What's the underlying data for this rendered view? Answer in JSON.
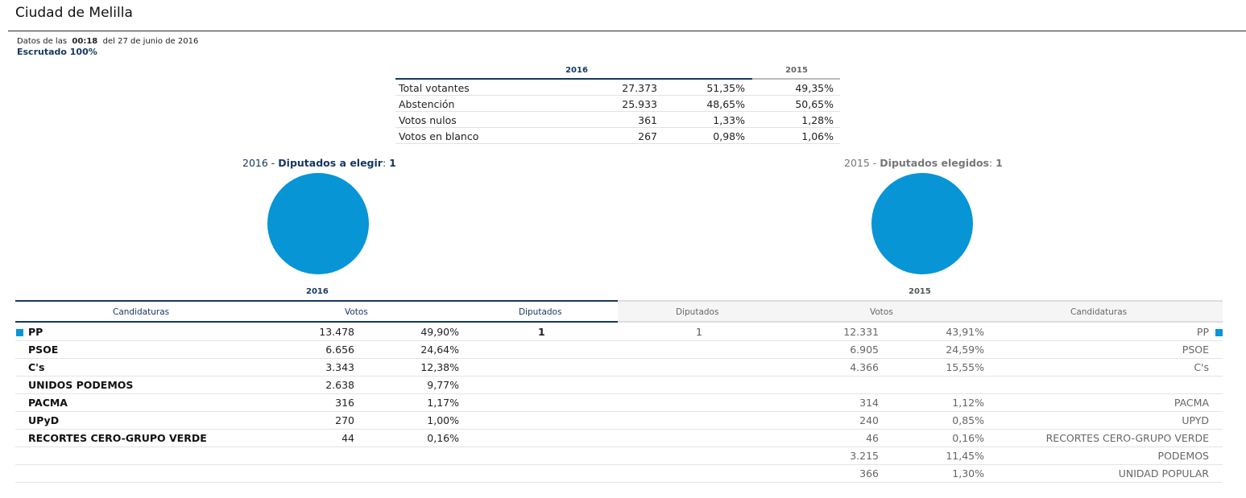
{
  "page": {
    "title": "Ciudad de Melilla",
    "datos_prefix": "Datos de las",
    "datos_time": "00:18",
    "datos_suffix": "del 27 de junio de 2016",
    "escrutado": "Escrutado 100%"
  },
  "summary": {
    "year_2016": "2016",
    "year_2015": "2015",
    "rows": [
      {
        "label": "Total votantes",
        "count_2016": "27.373",
        "pct_2016": "51,35%",
        "pct_2015": "49,35%"
      },
      {
        "label": "Abstención",
        "count_2016": "25.933",
        "pct_2016": "48,65%",
        "pct_2015": "50,65%"
      },
      {
        "label": "Votos nulos",
        "count_2016": "361",
        "pct_2016": "1,33%",
        "pct_2015": "1,28%"
      },
      {
        "label": "Votos en blanco",
        "count_2016": "267",
        "pct_2016": "0,98%",
        "pct_2015": "1,06%"
      }
    ]
  },
  "pies": {
    "left": {
      "year": "2016",
      "sep": " - ",
      "label": "Diputados a elegir",
      "colon": ": ",
      "value": "1",
      "color": "#0795d6"
    },
    "right": {
      "year": "2015",
      "sep": " - ",
      "label": "Diputados elegidos",
      "colon": ": ",
      "value": "1",
      "color": "#0795d6"
    }
  },
  "results": {
    "year_2016": "2016",
    "year_2015": "2015",
    "headers_2016": {
      "candidaturas": "Candidaturas",
      "votos": "Votos",
      "diputados": "Diputados"
    },
    "headers_2015": {
      "diputados": "Diputados",
      "votos": "Votos",
      "candidaturas": "Candidaturas"
    },
    "rows": [
      {
        "name_2016": "PP",
        "votes_2016": "13.478",
        "pct_2016": "49,90%",
        "seats_2016": "1",
        "seats_2015": "1",
        "votes_2015": "12.331",
        "pct_2015": "43,91%",
        "name_2015": "PP"
      },
      {
        "name_2016": "PSOE",
        "votes_2016": "6.656",
        "pct_2016": "24,64%",
        "seats_2016": "",
        "seats_2015": "",
        "votes_2015": "6.905",
        "pct_2015": "24,59%",
        "name_2015": "PSOE"
      },
      {
        "name_2016": "C's",
        "votes_2016": "3.343",
        "pct_2016": "12,38%",
        "seats_2016": "",
        "seats_2015": "",
        "votes_2015": "4.366",
        "pct_2015": "15,55%",
        "name_2015": "C's"
      },
      {
        "name_2016": "UNIDOS PODEMOS",
        "votes_2016": "2.638",
        "pct_2016": "9,77%",
        "seats_2016": "",
        "seats_2015": "",
        "votes_2015": "",
        "pct_2015": "",
        "name_2015": ""
      },
      {
        "name_2016": "PACMA",
        "votes_2016": "316",
        "pct_2016": "1,17%",
        "seats_2016": "",
        "seats_2015": "",
        "votes_2015": "314",
        "pct_2015": "1,12%",
        "name_2015": "PACMA"
      },
      {
        "name_2016": "UPyD",
        "votes_2016": "270",
        "pct_2016": "1,00%",
        "seats_2016": "",
        "seats_2015": "",
        "votes_2015": "240",
        "pct_2015": "0,85%",
        "name_2015": "UPYD"
      },
      {
        "name_2016": "RECORTES CERO-GRUPO VERDE",
        "votes_2016": "44",
        "pct_2016": "0,16%",
        "seats_2016": "",
        "seats_2015": "",
        "votes_2015": "46",
        "pct_2015": "0,16%",
        "name_2015": "RECORTES CERO-GRUPO VERDE"
      },
      {
        "name_2016": "",
        "votes_2016": "",
        "pct_2016": "",
        "seats_2016": "",
        "seats_2015": "",
        "votes_2015": "3.215",
        "pct_2015": "11,45%",
        "name_2015": "PODEMOS"
      },
      {
        "name_2016": "",
        "votes_2016": "",
        "pct_2016": "",
        "seats_2016": "",
        "seats_2015": "",
        "votes_2015": "366",
        "pct_2015": "1,30%",
        "name_2015": "UNIDAD POPULAR"
      }
    ]
  }
}
